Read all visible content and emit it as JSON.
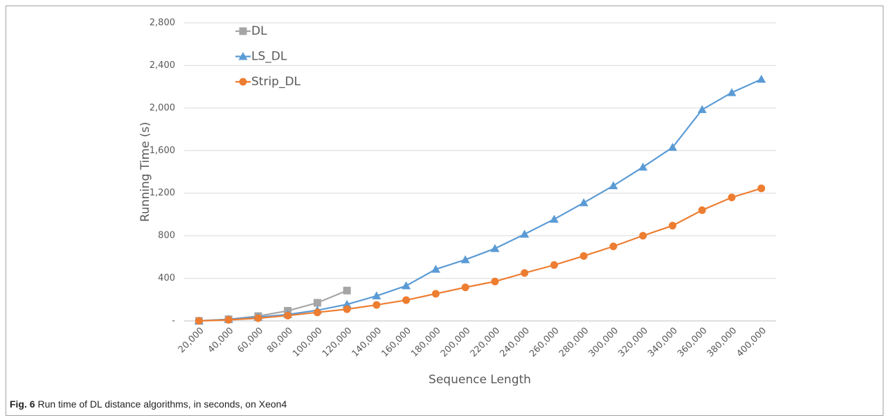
{
  "chart_data": {
    "type": "line",
    "x_label": "Sequence Length",
    "y_label": "Running Time (s)",
    "caption_label": "Fig. 6",
    "caption": "Run time of DL distance algorithms, in seconds, on Xeon4",
    "categories": [
      "20,000",
      "40,000",
      "60,000",
      "80,000",
      "100,000",
      "120,000",
      "140,000",
      "160,000",
      "180,000",
      "200,000",
      "220,000",
      "240,000",
      "260,000",
      "280,000",
      "300,000",
      "320,000",
      "340,000",
      "360,000",
      "380,000",
      "400,000"
    ],
    "series": [
      {
        "name": "DL",
        "color": "#a5a5a5",
        "marker": "square",
        "values": [
          0,
          15,
          45,
          95,
          170,
          285,
          null,
          null,
          null,
          null,
          null,
          null,
          null,
          null,
          null,
          null,
          null,
          null,
          null,
          null
        ]
      },
      {
        "name": "LS_DL",
        "color": "#5b9bd5",
        "marker": "triangle",
        "values": [
          0,
          15,
          35,
          60,
          100,
          155,
          235,
          330,
          485,
          575,
          680,
          815,
          955,
          1110,
          1270,
          1445,
          1630,
          1985,
          2145,
          2270
        ]
      },
      {
        "name": "Strip_DL",
        "color": "#ed7d31",
        "marker": "circle",
        "values": [
          0,
          10,
          25,
          50,
          80,
          110,
          150,
          195,
          255,
          315,
          370,
          450,
          525,
          610,
          700,
          800,
          895,
          1040,
          1160,
          1245
        ]
      }
    ],
    "ylim": [
      0,
      2800
    ],
    "yticks": [
      {
        "value": 0,
        "label": "-"
      },
      400,
      800,
      {
        "value": 1200,
        "label": "1,200"
      },
      {
        "value": 1600,
        "label": "1,600"
      },
      {
        "value": 2000,
        "label": "2,000"
      },
      {
        "value": 2400,
        "label": "2,400"
      },
      {
        "value": 2800,
        "label": "2,800"
      }
    ],
    "grid": true,
    "legend": "top-left"
  }
}
